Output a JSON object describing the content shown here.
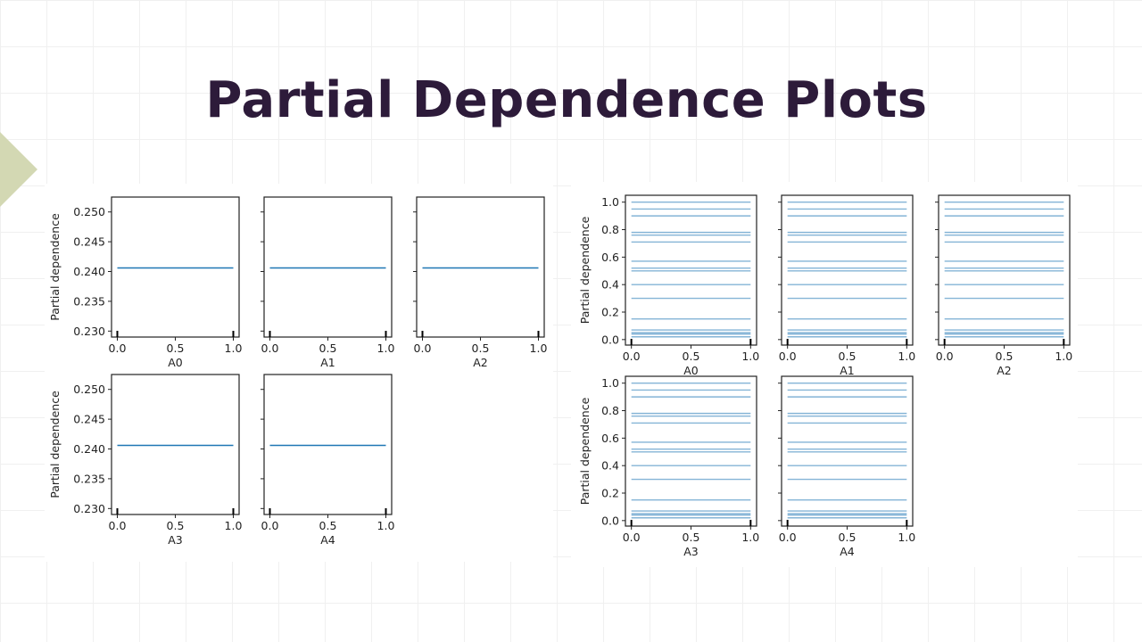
{
  "slide": {
    "title": "Partial Dependence Plots"
  },
  "colors": {
    "title": "#2d1b3a",
    "accent": "#d3d8b3",
    "line": "#1f77b4"
  },
  "chart_data": [
    {
      "type": "line",
      "kind": "partial-dependence-average",
      "ylabel": "Partial dependence",
      "ylim": [
        0.229,
        0.2525
      ],
      "yticks": [
        "0.230",
        "0.235",
        "0.240",
        "0.245",
        "0.250"
      ],
      "xlim": [
        -0.05,
        1.05
      ],
      "xticks": [
        "0.0",
        "0.5",
        "1.0"
      ],
      "panels": [
        {
          "xlabel": "A0",
          "x": [
            0,
            1
          ],
          "y": [
            0.2406,
            0.2406
          ]
        },
        {
          "xlabel": "A1",
          "x": [
            0,
            1
          ],
          "y": [
            0.2406,
            0.2406
          ]
        },
        {
          "xlabel": "A2",
          "x": [
            0,
            1
          ],
          "y": [
            0.2406,
            0.2406
          ]
        },
        {
          "xlabel": "A3",
          "x": [
            0,
            1
          ],
          "y": [
            0.2406,
            0.2406
          ]
        },
        {
          "xlabel": "A4",
          "x": [
            0,
            1
          ],
          "y": [
            0.2406,
            0.2406
          ]
        }
      ]
    },
    {
      "type": "line",
      "kind": "partial-dependence-individual",
      "ylabel": "Partial dependence",
      "ylim": [
        -0.04,
        1.05
      ],
      "yticks": [
        "0.0",
        "0.2",
        "0.4",
        "0.6",
        "0.8",
        "1.0"
      ],
      "xlim": [
        -0.05,
        1.05
      ],
      "xticks": [
        "0.0",
        "0.5",
        "1.0"
      ],
      "ice_levels": [
        0.02,
        0.04,
        0.05,
        0.07,
        0.15,
        0.3,
        0.4,
        0.5,
        0.52,
        0.57,
        0.71,
        0.76,
        0.78,
        0.9,
        0.95,
        1.0
      ],
      "panels": [
        {
          "xlabel": "A0"
        },
        {
          "xlabel": "A1"
        },
        {
          "xlabel": "A2"
        },
        {
          "xlabel": "A3"
        },
        {
          "xlabel": "A4"
        }
      ]
    }
  ]
}
